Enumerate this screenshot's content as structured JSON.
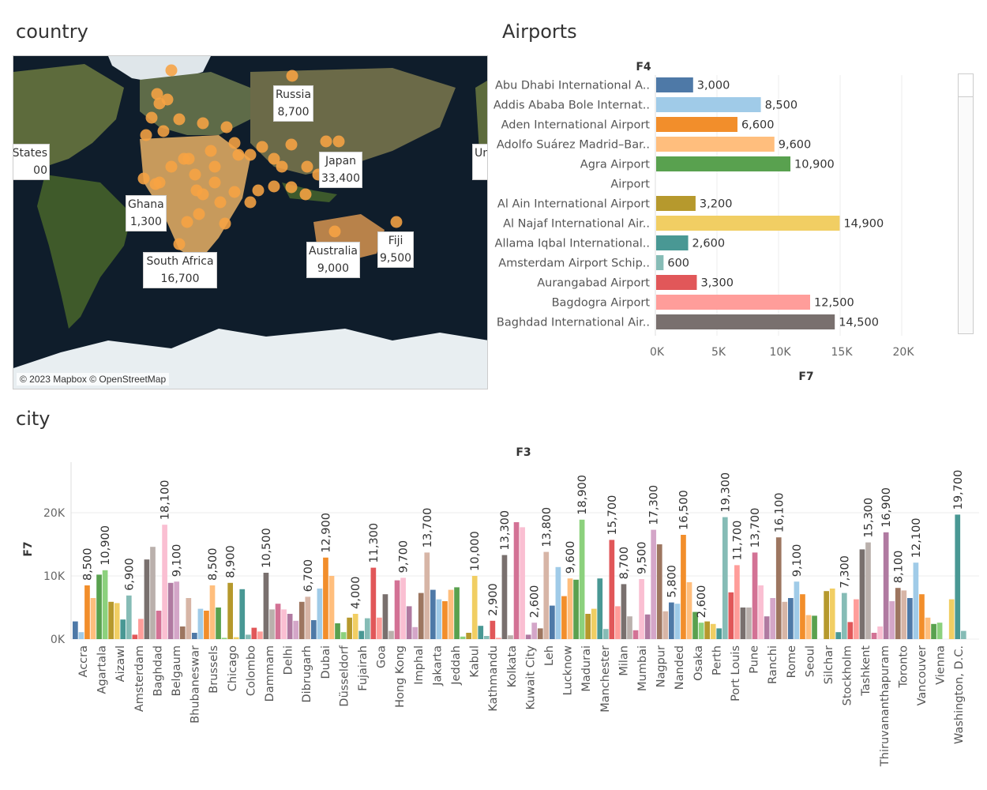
{
  "sections": {
    "country_title": "country",
    "airports_title": "Airports",
    "city_title": "city"
  },
  "map": {
    "attribution": "© 2023 Mapbox © OpenStreetMap",
    "labels": [
      {
        "name": "Russia",
        "value": "8,700"
      },
      {
        "name": "Japan",
        "value": "33,400"
      },
      {
        "name": "Ghana",
        "value": "1,300"
      },
      {
        "name": "South Africa",
        "value": "16,700"
      },
      {
        "name": "Australia",
        "value": "9,000"
      },
      {
        "name": "Fiji",
        "value": "9,500"
      },
      {
        "name": "States",
        "value": "00"
      },
      {
        "name": "Un",
        "value": ""
      }
    ],
    "dot_color": "#f7a343"
  },
  "chart_data": [
    {
      "type": "bar",
      "orientation": "horizontal",
      "title": "",
      "header": "F4",
      "xlabel": "F7",
      "ylabel": "",
      "xlim": [
        0,
        25000
      ],
      "x_ticks": [
        "0K",
        "5K",
        "10K",
        "15K",
        "20K"
      ],
      "grid": true,
      "categories": [
        "Abu Dhabi International A..",
        "Addis Ababa Bole Internat..",
        "Aden International Airport",
        "Adolfo Suárez Madrid–Bar..",
        "Agra Airport",
        "Airport",
        "Al Ain International Airport",
        "Al Najaf International Air..",
        "Allama Iqbal International..",
        "Amsterdam Airport Schip..",
        "Aurangabad Airport",
        "Bagdogra Airport",
        "Baghdad International Air.."
      ],
      "values": [
        3000,
        8500,
        6600,
        9600,
        10900,
        null,
        3200,
        14900,
        2600,
        600,
        3300,
        12500,
        14500
      ],
      "value_labels": [
        "3,000",
        "8,500",
        "6,600",
        "9,600",
        "10,900",
        "",
        "3,200",
        "14,900",
        "2,600",
        "600",
        "3,300",
        "12,500",
        "14,500"
      ],
      "colors": [
        "#4e79a7",
        "#a0cbe8",
        "#f28e2b",
        "#ffbe7d",
        "#59a14f",
        "#8cd17d",
        "#b6992d",
        "#f1ce63",
        "#499894",
        "#86bcb6",
        "#e15759",
        "#ff9d9a",
        "#79706e"
      ]
    },
    {
      "type": "bar",
      "title": "",
      "header": "F3",
      "xlabel": "",
      "ylabel": "F7",
      "ylim": [
        0,
        24000
      ],
      "y_ticks": [
        {
          "value": 0,
          "label": "0K"
        },
        {
          "value": 10000,
          "label": "10K"
        },
        {
          "value": 20000,
          "label": "20K"
        }
      ],
      "grid": true,
      "x_tick_labels": [
        "Accra",
        "Agartala",
        "Aizawl",
        "Amsterdam",
        "Baghdad",
        "Belgaum",
        "Bhubaneswar",
        "Brussels",
        "Chicago",
        "Colombo",
        "Dammam",
        "Delhi",
        "Dibrugarh",
        "Dubai",
        "Düsseldorf",
        "Fujairah",
        "Goa",
        "Hong Kong",
        "Imphal",
        "Jakarta",
        "Jeddah",
        "Kabul",
        "Kathmandu",
        "Kolkata",
        "Kuwait City",
        "Leh",
        "Lucknow",
        "Madurai",
        "Manchester",
        "Milan",
        "Mumbai",
        "Nagpur",
        "Nanded",
        "Osaka",
        "Perth",
        "Port Louis",
        "Pune",
        "Ranchi",
        "Rome",
        "Seoul",
        "Silchar",
        "Stockholm",
        "Tashkent",
        "Thiruvananthapuram",
        "Toronto",
        "Vancouver",
        "Vienna",
        "Washington, D.C."
      ],
      "values": [
        2800,
        1100,
        8500,
        6500,
        10200,
        10900,
        5900,
        5700,
        3100,
        6900,
        700,
        3200,
        12600,
        14600,
        4500,
        18100,
        8900,
        9100,
        2000,
        6500,
        1000,
        4800,
        4500,
        8500,
        5000,
        200,
        8900,
        300,
        7900,
        700,
        1800,
        1200,
        10500,
        4700,
        5600,
        4700,
        4000,
        2900,
        5900,
        6700,
        3000,
        8000,
        12900,
        10000,
        2500,
        1100,
        3400,
        4000,
        1300,
        3300,
        11300,
        3400,
        7100,
        1300,
        9300,
        9700,
        5200,
        1900,
        7300,
        13700,
        7800,
        6300,
        6000,
        7800,
        8200,
        400,
        1000,
        10000,
        2100,
        500,
        2900,
        200,
        13300,
        600,
        18500,
        17700,
        700,
        2600,
        1700,
        13800,
        5300,
        11400,
        6800,
        9600,
        9400,
        18900,
        4000,
        4800,
        9600,
        1600,
        15700,
        5200,
        8700,
        3600,
        1400,
        9500,
        3900,
        17300,
        15000,
        4400,
        5800,
        5600,
        16500,
        9000,
        4300,
        2600,
        2800,
        2400,
        1700,
        19300,
        7400,
        11700,
        5000,
        5000,
        13700,
        8500,
        3600,
        6500,
        16100,
        5900,
        6500,
        9100,
        7100,
        3800,
        3700,
        0,
        7600,
        8000,
        1100,
        7300,
        2700,
        6300,
        14200,
        15300,
        1000,
        2000,
        16900,
        6000,
        8100,
        7700,
        6500,
        12100,
        7100,
        3400,
        2400,
        2600,
        0,
        6300,
        19700,
        1300
      ],
      "value_labels": [
        {
          "bar": 2,
          "label": "8,500"
        },
        {
          "bar": 5,
          "label": "10,900"
        },
        {
          "bar": 9,
          "label": "6,900"
        },
        {
          "bar": 15,
          "label": "18,100"
        },
        {
          "bar": 17,
          "label": "9,100"
        },
        {
          "bar": 23,
          "label": "8,500"
        },
        {
          "bar": 26,
          "label": "8,900"
        },
        {
          "bar": 32,
          "label": "10,500"
        },
        {
          "bar": 39,
          "label": "6,700"
        },
        {
          "bar": 42,
          "label": "12,900"
        },
        {
          "bar": 47,
          "label": "4,000"
        },
        {
          "bar": 50,
          "label": "11,300"
        },
        {
          "bar": 55,
          "label": "9,700"
        },
        {
          "bar": 59,
          "label": "13,700"
        },
        {
          "bar": 67,
          "label": "10,000"
        },
        {
          "bar": 70,
          "label": "2,900"
        },
        {
          "bar": 72,
          "label": "13,300"
        },
        {
          "bar": 77,
          "label": "2,600"
        },
        {
          "bar": 79,
          "label": "13,800"
        },
        {
          "bar": 83,
          "label": "9,600"
        },
        {
          "bar": 85,
          "label": "18,900"
        },
        {
          "bar": 90,
          "label": "15,700"
        },
        {
          "bar": 92,
          "label": "8,700"
        },
        {
          "bar": 95,
          "label": "9,500"
        },
        {
          "bar": 97,
          "label": "17,300"
        },
        {
          "bar": 100,
          "label": "5,800"
        },
        {
          "bar": 102,
          "label": "16,500"
        },
        {
          "bar": 105,
          "label": "2,600"
        },
        {
          "bar": 109,
          "label": "19,300"
        },
        {
          "bar": 111,
          "label": "11,700"
        },
        {
          "bar": 114,
          "label": "13,700"
        },
        {
          "bar": 118,
          "label": "16,100"
        },
        {
          "bar": 121,
          "label": "9,100"
        },
        {
          "bar": 129,
          "label": "7,300"
        },
        {
          "bar": 133,
          "label": "15,300"
        },
        {
          "bar": 136,
          "label": "16,900"
        },
        {
          "bar": 138,
          "label": "8,100"
        },
        {
          "bar": 141,
          "label": "12,100"
        },
        {
          "bar": 148,
          "label": "19,700"
        }
      ],
      "palette": [
        "#4e79a7",
        "#a0cbe8",
        "#f28e2b",
        "#ffbe7d",
        "#59a14f",
        "#8cd17d",
        "#b6992d",
        "#f1ce63",
        "#499894",
        "#86bcb6",
        "#e15759",
        "#ff9d9a",
        "#79706e",
        "#bab0ac",
        "#d37295",
        "#fabfd2",
        "#b07aa1",
        "#d4a6c8",
        "#9d7660",
        "#d7b5a6"
      ]
    }
  ]
}
